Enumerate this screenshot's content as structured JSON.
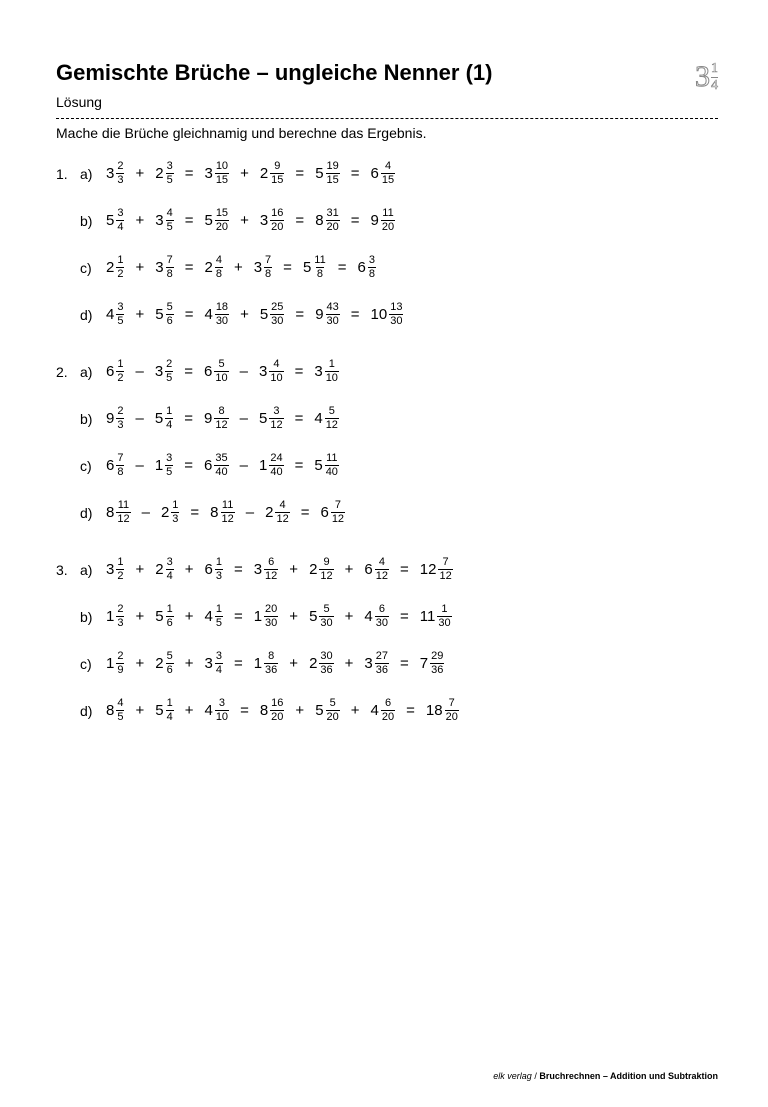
{
  "colors": {
    "text": "#000000",
    "bg": "#ffffff",
    "logo_outline": "#888888"
  },
  "title": "Gemischte Brüche – ungleiche Nenner (1)",
  "subtitle": "Lösung",
  "instruction": "Mache die Brüche gleichnamig und berechne das Ergebnis.",
  "logo": {
    "whole": "3",
    "num": "1",
    "den": "4"
  },
  "footer": {
    "publisher": "elk verlag",
    "sep": " / ",
    "book": "Bruchrechnen – Addition und Subtraktion"
  },
  "groups": [
    {
      "num": "1.",
      "rows": [
        {
          "letter": "a)",
          "steps": [
            [
              {
                "w": "3",
                "n": "2",
                "d": "3"
              },
              "+",
              {
                "w": "2",
                "n": "3",
                "d": "5"
              }
            ],
            [
              {
                "w": "3",
                "n": "10",
                "d": "15"
              },
              "+",
              {
                "w": "2",
                "n": "9",
                "d": "15"
              }
            ],
            [
              {
                "w": "5",
                "n": "19",
                "d": "15"
              }
            ],
            [
              {
                "w": "6",
                "n": "4",
                "d": "15"
              }
            ]
          ]
        },
        {
          "letter": "b)",
          "steps": [
            [
              {
                "w": "5",
                "n": "3",
                "d": "4"
              },
              "+",
              {
                "w": "3",
                "n": "4",
                "d": "5"
              }
            ],
            [
              {
                "w": "5",
                "n": "15",
                "d": "20"
              },
              "+",
              {
                "w": "3",
                "n": "16",
                "d": "20"
              }
            ],
            [
              {
                "w": "8",
                "n": "31",
                "d": "20"
              }
            ],
            [
              {
                "w": "9",
                "n": "11",
                "d": "20"
              }
            ]
          ]
        },
        {
          "letter": "c)",
          "steps": [
            [
              {
                "w": "2",
                "n": "1",
                "d": "2"
              },
              "+",
              {
                "w": "3",
                "n": "7",
                "d": "8"
              }
            ],
            [
              {
                "w": "2",
                "n": "4",
                "d": "8"
              },
              "+",
              {
                "w": "3",
                "n": "7",
                "d": "8"
              }
            ],
            [
              {
                "w": "5",
                "n": "11",
                "d": "8"
              }
            ],
            [
              {
                "w": "6",
                "n": "3",
                "d": "8"
              }
            ]
          ]
        },
        {
          "letter": "d)",
          "steps": [
            [
              {
                "w": "4",
                "n": "3",
                "d": "5"
              },
              "+",
              {
                "w": "5",
                "n": "5",
                "d": "6"
              }
            ],
            [
              {
                "w": "4",
                "n": "18",
                "d": "30"
              },
              "+",
              {
                "w": "5",
                "n": "25",
                "d": "30"
              }
            ],
            [
              {
                "w": "9",
                "n": "43",
                "d": "30"
              }
            ],
            [
              {
                "w": "10",
                "n": "13",
                "d": "30"
              }
            ]
          ]
        }
      ]
    },
    {
      "num": "2.",
      "rows": [
        {
          "letter": "a)",
          "steps": [
            [
              {
                "w": "6",
                "n": "1",
                "d": "2"
              },
              "–",
              {
                "w": "3",
                "n": "2",
                "d": "5"
              }
            ],
            [
              {
                "w": "6",
                "n": "5",
                "d": "10"
              },
              "–",
              {
                "w": "3",
                "n": "4",
                "d": "10"
              }
            ],
            [
              {
                "w": "3",
                "n": "1",
                "d": "10"
              }
            ]
          ]
        },
        {
          "letter": "b)",
          "steps": [
            [
              {
                "w": "9",
                "n": "2",
                "d": "3"
              },
              "–",
              {
                "w": "5",
                "n": "1",
                "d": "4"
              }
            ],
            [
              {
                "w": "9",
                "n": "8",
                "d": "12"
              },
              "–",
              {
                "w": "5",
                "n": "3",
                "d": "12"
              }
            ],
            [
              {
                "w": "4",
                "n": "5",
                "d": "12"
              }
            ]
          ]
        },
        {
          "letter": "c)",
          "steps": [
            [
              {
                "w": "6",
                "n": "7",
                "d": "8"
              },
              "–",
              {
                "w": "1",
                "n": "3",
                "d": "5"
              }
            ],
            [
              {
                "w": "6",
                "n": "35",
                "d": "40"
              },
              "–",
              {
                "w": "1",
                "n": "24",
                "d": "40"
              }
            ],
            [
              {
                "w": "5",
                "n": "11",
                "d": "40"
              }
            ]
          ]
        },
        {
          "letter": "d)",
          "steps": [
            [
              {
                "w": "8",
                "n": "11",
                "d": "12"
              },
              "–",
              {
                "w": "2",
                "n": "1",
                "d": "3"
              }
            ],
            [
              {
                "w": "8",
                "n": "11",
                "d": "12"
              },
              "–",
              {
                "w": "2",
                "n": "4",
                "d": "12"
              }
            ],
            [
              {
                "w": "6",
                "n": "7",
                "d": "12"
              }
            ]
          ]
        }
      ]
    },
    {
      "num": "3.",
      "rows": [
        {
          "letter": "a)",
          "steps": [
            [
              {
                "w": "3",
                "n": "1",
                "d": "2"
              },
              "+",
              {
                "w": "2",
                "n": "3",
                "d": "4"
              },
              "+",
              {
                "w": "6",
                "n": "1",
                "d": "3"
              }
            ],
            [
              {
                "w": "3",
                "n": "6",
                "d": "12"
              },
              "+",
              {
                "w": "2",
                "n": "9",
                "d": "12"
              },
              "+",
              {
                "w": "6",
                "n": "4",
                "d": "12"
              }
            ],
            [
              {
                "w": "12",
                "n": "7",
                "d": "12"
              }
            ]
          ]
        },
        {
          "letter": "b)",
          "steps": [
            [
              {
                "w": "1",
                "n": "2",
                "d": "3"
              },
              "+",
              {
                "w": "5",
                "n": "1",
                "d": "6"
              },
              "+",
              {
                "w": "4",
                "n": "1",
                "d": "5"
              }
            ],
            [
              {
                "w": "1",
                "n": "20",
                "d": "30"
              },
              "+",
              {
                "w": "5",
                "n": "5",
                "d": "30"
              },
              "+",
              {
                "w": "4",
                "n": "6",
                "d": "30"
              }
            ],
            [
              {
                "w": "11",
                "n": "1",
                "d": "30"
              }
            ]
          ]
        },
        {
          "letter": "c)",
          "steps": [
            [
              {
                "w": "1",
                "n": "2",
                "d": "9"
              },
              "+",
              {
                "w": "2",
                "n": "5",
                "d": "6"
              },
              "+",
              {
                "w": "3",
                "n": "3",
                "d": "4"
              }
            ],
            [
              {
                "w": "1",
                "n": "8",
                "d": "36"
              },
              "+",
              {
                "w": "2",
                "n": "30",
                "d": "36"
              },
              "+",
              {
                "w": "3",
                "n": "27",
                "d": "36"
              }
            ],
            [
              {
                "w": "7",
                "n": "29",
                "d": "36"
              }
            ]
          ]
        },
        {
          "letter": "d)",
          "steps": [
            [
              {
                "w": "8",
                "n": "4",
                "d": "5"
              },
              "+",
              {
                "w": "5",
                "n": "1",
                "d": "4"
              },
              "+",
              {
                "w": "4",
                "n": "3",
                "d": "10"
              }
            ],
            [
              {
                "w": "8",
                "n": "16",
                "d": "20"
              },
              "+",
              {
                "w": "5",
                "n": "5",
                "d": "20"
              },
              "+",
              {
                "w": "4",
                "n": "6",
                "d": "20"
              }
            ],
            [
              {
                "w": "18",
                "n": "7",
                "d": "20"
              }
            ]
          ]
        }
      ]
    }
  ]
}
